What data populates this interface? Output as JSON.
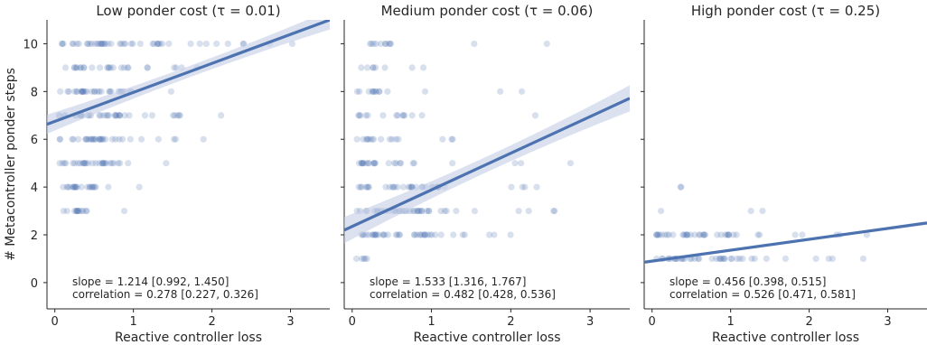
{
  "chart_data": {
    "type": "scatter",
    "ylabel": "# Metacontroller ponder steps",
    "ylim": [
      -1.1,
      11
    ],
    "yticks": [
      "0",
      "2",
      "4",
      "6",
      "8",
      "10"
    ],
    "grid": false,
    "legend": "none",
    "colors": {
      "points": "#4c72b0",
      "line": "#4c72b0",
      "band": "#c5cde6"
    },
    "panels": [
      {
        "title": "Low ponder cost (τ = 0.01)",
        "xlabel": "Reactive controller loss",
        "xlim": [
          -0.1,
          3.5
        ],
        "xticks": [
          "0",
          "1",
          "2",
          "3"
        ],
        "regression": {
          "slope": 1.214,
          "intercept": 6.75,
          "ci_halfwidth_at_ends": 0.4
        },
        "annotation_slope": "slope = 1.214  [0.992, 1.450]",
        "annotation_corr": "correlation = 0.278  [0.227, 0.326]",
        "y_levels": [
          3,
          4,
          5,
          6,
          7,
          8,
          9,
          10
        ],
        "x_dense_max": [
          0.4,
          0.55,
          0.85,
          0.9,
          0.95,
          1.0,
          0.95,
          1.4
        ],
        "x_sparse_max": [
          1.1,
          1.3,
          2.1,
          1.9,
          2.3,
          2.4,
          2.2,
          3.05
        ],
        "points_per_level": [
          14,
          22,
          30,
          32,
          36,
          30,
          26,
          46
        ]
      },
      {
        "title": "Medium ponder cost (τ = 0.06)",
        "xlabel": "Reactive controller loss",
        "xlim": [
          -0.1,
          3.5
        ],
        "xticks": [
          "0",
          "1",
          "2",
          "3"
        ],
        "regression": {
          "slope": 1.533,
          "intercept": 2.35,
          "ci_halfwidth_at_ends": 0.55
        },
        "annotation_slope": "slope = 1.533  [1.316, 1.767]",
        "annotation_corr": "correlation = 0.482  [0.428, 0.536]",
        "y_levels": [
          1,
          2,
          3,
          4,
          5,
          6,
          7,
          8,
          9,
          10
        ],
        "x_dense_max": [
          0.2,
          1.1,
          1.2,
          1.1,
          0.9,
          0.7,
          0.7,
          0.5,
          0.5,
          0.5
        ],
        "x_sparse_max": [
          0.3,
          2.2,
          2.6,
          2.75,
          3.0,
          2.9,
          2.4,
          2.45,
          1.8,
          2.55
        ],
        "points_per_level": [
          5,
          40,
          40,
          34,
          24,
          16,
          14,
          14,
          8,
          12
        ]
      },
      {
        "title": "High ponder cost (τ = 0.25)",
        "xlabel": "Reactive controller loss",
        "xlim": [
          -0.1,
          3.5
        ],
        "xticks": [
          "0",
          "1",
          "2",
          "3"
        ],
        "regression": {
          "slope": 0.456,
          "intercept": 0.9,
          "ci_halfwidth_at_ends": 0.08
        },
        "annotation_slope": "slope = 0.456  [0.398, 0.515]",
        "annotation_corr": "correlation = 0.526  [0.471, 0.581]",
        "y_levels": [
          1,
          2,
          3,
          4
        ],
        "x_dense_max": [
          1.2,
          1.1,
          0.0,
          0.0
        ],
        "x_sparse_max": [
          2.8,
          3.0,
          2.5,
          1.05
        ],
        "points_per_level": [
          40,
          40,
          3,
          2
        ]
      }
    ]
  }
}
